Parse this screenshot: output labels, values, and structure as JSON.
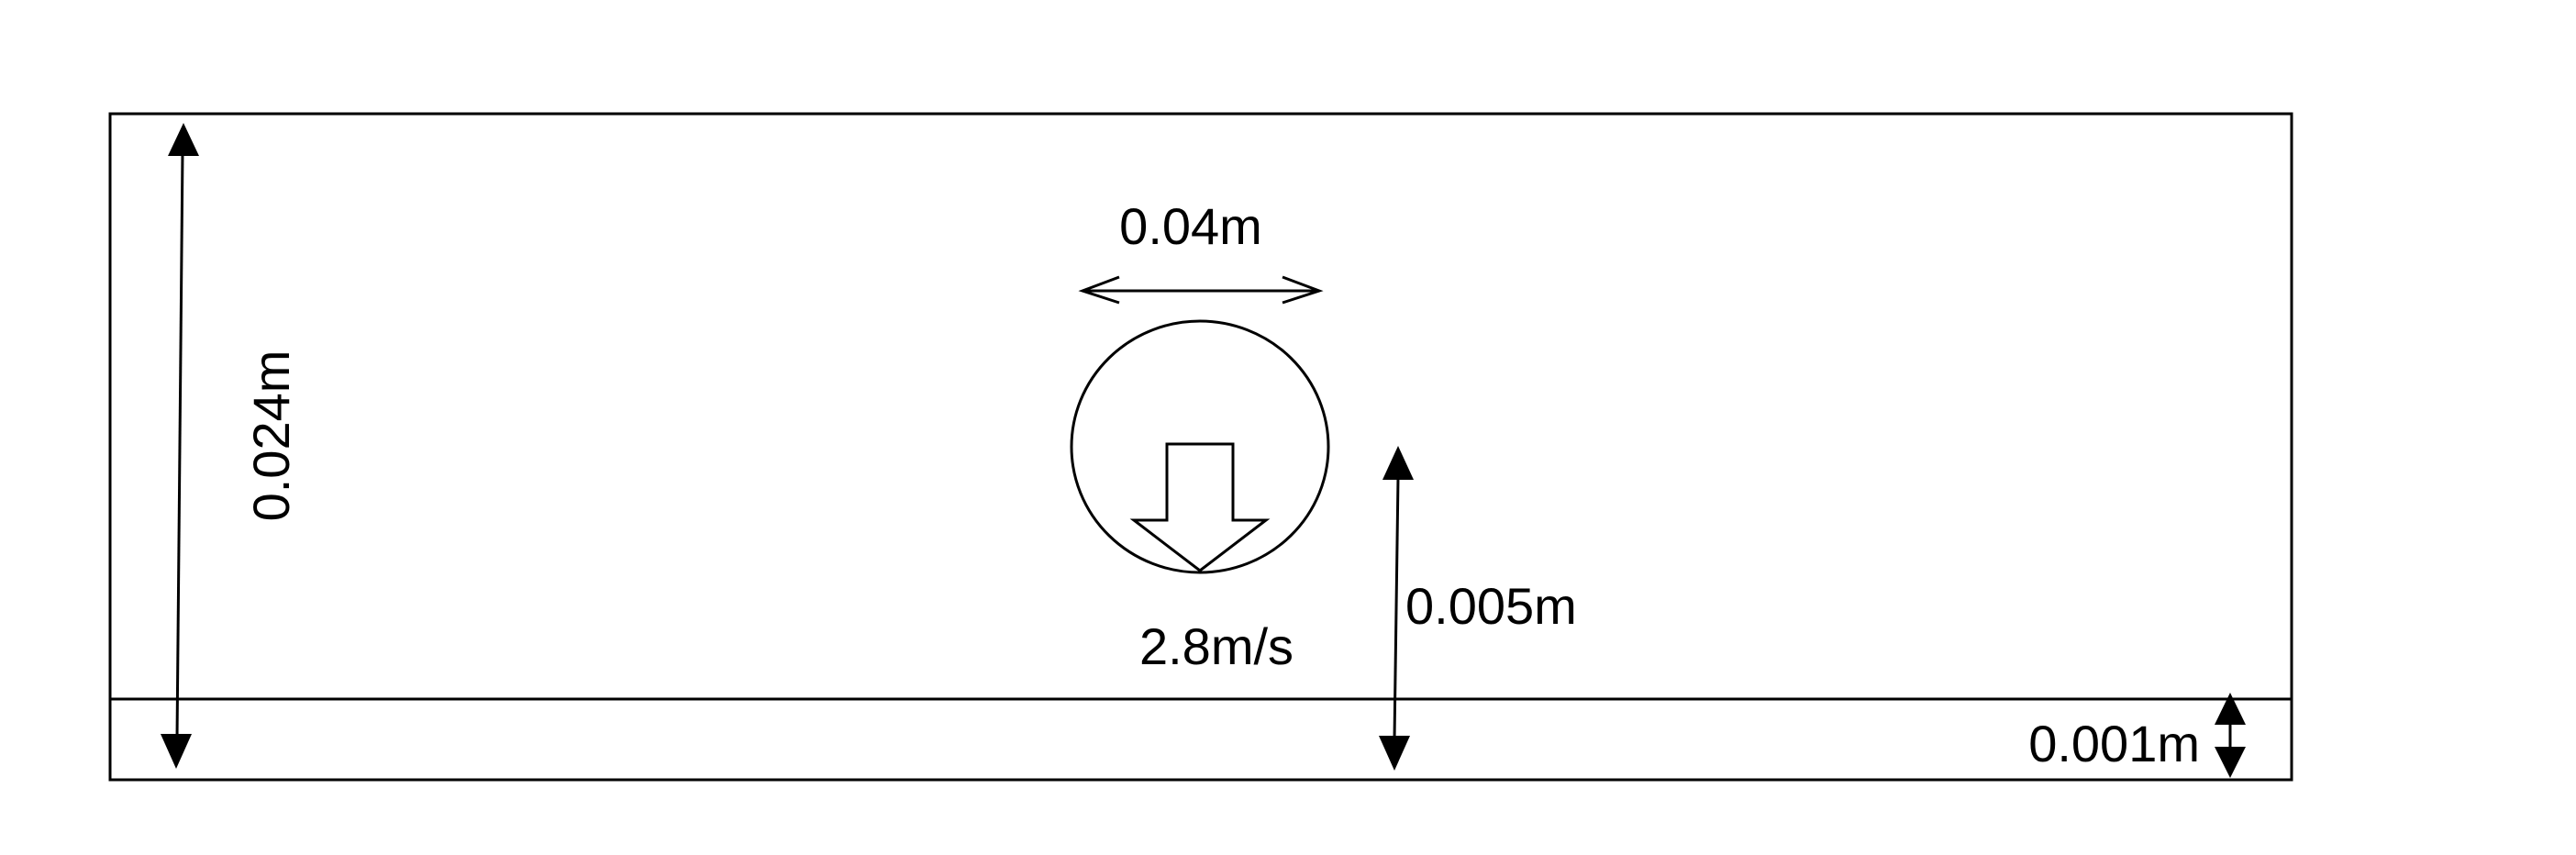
{
  "diagram": {
    "labels": {
      "domain_height": "0.024m",
      "cylinder_diameter": "0.04m",
      "velocity": "2.8m/s",
      "gap_height": "0.005m",
      "wall_thickness": "0.001m"
    },
    "colors": {
      "stroke": "#000000",
      "background": "#ffffff"
    }
  }
}
